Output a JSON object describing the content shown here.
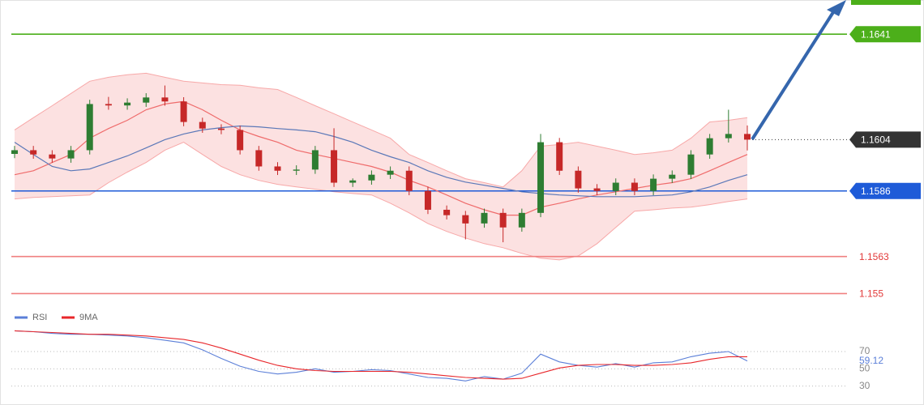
{
  "chart_data": [
    {
      "type": "candlestick",
      "ylim": [
        1.1545,
        1.1653
      ],
      "up_color": "#2e7d32",
      "down_color": "#c62828",
      "open": [
        1.1599,
        1.16003,
        1.15988,
        1.15974,
        1.16003,
        1.16165,
        1.1616,
        1.1617,
        1.16188,
        1.16174,
        1.16102,
        1.16079,
        1.16074,
        1.16003,
        1.15946,
        1.15931,
        1.15935,
        1.16003,
        1.15889,
        1.15897,
        1.15917,
        1.15931,
        1.1586,
        1.15794,
        1.15775,
        1.15746,
        1.15783,
        1.15732,
        1.15783,
        1.16031,
        1.15931,
        1.15869,
        1.1586,
        1.15889,
        1.1586,
        1.15903,
        1.15917,
        1.15988,
        1.16045,
        1.1606
      ],
      "high": [
        1.16018,
        1.16018,
        1.16003,
        1.16018,
        1.1618,
        1.1619,
        1.16185,
        1.16203,
        1.1623,
        1.16189,
        1.16117,
        1.16094,
        1.16089,
        1.16018,
        1.15961,
        1.1595,
        1.16018,
        1.1608,
        1.15904,
        1.15932,
        1.15946,
        1.15946,
        1.15875,
        1.15809,
        1.1579,
        1.15798,
        1.15798,
        1.15798,
        1.1606,
        1.16046,
        1.15946,
        1.15884,
        1.15904,
        1.15904,
        1.15918,
        1.15932,
        1.16003,
        1.1606,
        1.16145,
        1.1609
      ],
      "low": [
        1.15975,
        1.15973,
        1.15959,
        1.15959,
        1.15988,
        1.16145,
        1.16145,
        1.16155,
        1.16159,
        1.16087,
        1.16064,
        1.16059,
        1.15988,
        1.15931,
        1.15916,
        1.15916,
        1.1592,
        1.15874,
        1.15874,
        1.15882,
        1.15902,
        1.15845,
        1.15779,
        1.1576,
        1.1569,
        1.15731,
        1.1568,
        1.15717,
        1.15768,
        1.15916,
        1.15854,
        1.15845,
        1.15845,
        1.15845,
        1.15845,
        1.15888,
        1.15902,
        1.15973,
        1.1603,
        1.16002
      ],
      "close": [
        1.16003,
        1.15988,
        1.15974,
        1.16003,
        1.16165,
        1.1616,
        1.1617,
        1.16188,
        1.16174,
        1.16102,
        1.16079,
        1.16074,
        1.16003,
        1.15946,
        1.15931,
        1.15935,
        1.16003,
        1.15889,
        1.15897,
        1.15917,
        1.15931,
        1.1586,
        1.15794,
        1.15775,
        1.15746,
        1.15783,
        1.15732,
        1.15783,
        1.16031,
        1.15931,
        1.15869,
        1.1586,
        1.15889,
        1.1586,
        1.15903,
        1.15917,
        1.15988,
        1.16045,
        1.1606,
        1.1604
      ],
      "band": {
        "color": "#f7a8a8",
        "upper": [
          1.16074,
          1.16117,
          1.16159,
          1.16202,
          1.16245,
          1.16259,
          1.16268,
          1.16273,
          1.16259,
          1.16245,
          1.16239,
          1.16233,
          1.16231,
          1.16222,
          1.16216,
          1.16188,
          1.16159,
          1.16131,
          1.16102,
          1.16074,
          1.16045,
          1.15988,
          1.1596,
          1.15931,
          1.15903,
          1.15889,
          1.15874,
          1.15931,
          1.16017,
          1.16023,
          1.16031,
          1.16017,
          1.16003,
          1.15988,
          1.15994,
          1.16003,
          1.16045,
          1.16102,
          1.16108,
          1.16117
        ],
        "lower": [
          1.15832,
          1.15837,
          1.1584,
          1.15843,
          1.15846,
          1.15889,
          1.15926,
          1.1596,
          1.16003,
          1.16031,
          1.15988,
          1.15946,
          1.15917,
          1.15897,
          1.15883,
          1.15874,
          1.15866,
          1.15857,
          1.15851,
          1.15846,
          1.15817,
          1.15783,
          1.15746,
          1.15718,
          1.15695,
          1.15675,
          1.15661,
          1.15641,
          1.15624,
          1.15618,
          1.15632,
          1.15675,
          1.15732,
          1.15789,
          1.15794,
          1.158,
          1.15803,
          1.15812,
          1.15823,
          1.15832
        ]
      },
      "overlays": [
        {
          "color": "#ef6b6b",
          "values": [
            1.15917,
            1.15931,
            1.1596,
            1.15988,
            1.16045,
            1.16079,
            1.16108,
            1.16145,
            1.16165,
            1.16174,
            1.16145,
            1.16108,
            1.16074,
            1.16051,
            1.16031,
            1.16003,
            1.15988,
            1.15974,
            1.1596,
            1.15946,
            1.15926,
            1.15897,
            1.15874,
            1.15846,
            1.15817,
            1.15794,
            1.15775,
            1.15775,
            1.15803,
            1.15817,
            1.15832,
            1.15846,
            1.15857,
            1.15869,
            1.1588,
            1.15889,
            1.15903,
            1.15931,
            1.1596,
            1.15988
          ]
        },
        {
          "color": "#5b78b8",
          "values": [
            1.16031,
            1.15988,
            1.15946,
            1.15931,
            1.15937,
            1.1596,
            1.15983,
            1.16011,
            1.1604,
            1.1606,
            1.16074,
            1.16082,
            1.16088,
            1.16085,
            1.16079,
            1.16074,
            1.16068,
            1.16051,
            1.16031,
            1.16003,
            1.1598,
            1.1596,
            1.15931,
            1.15908,
            1.15891,
            1.1588,
            1.15869,
            1.15857,
            1.15851,
            1.15846,
            1.15843,
            1.1584,
            1.1584,
            1.1584,
            1.15843,
            1.15846,
            1.15857,
            1.15874,
            1.15897,
            1.15917
          ]
        }
      ],
      "levels": [
        {
          "value": 1.1641,
          "color": "#4caf1a",
          "style": "solid",
          "label_style": "box"
        },
        {
          "value": 1.1604,
          "color": "#333333",
          "style": "dotted",
          "label_style": "box"
        },
        {
          "value": 1.1586,
          "color": "#1e5bd8",
          "style": "solid",
          "label_style": "box"
        },
        {
          "value": 1.1563,
          "color": "#f08080",
          "style": "solid",
          "label_style": "text"
        },
        {
          "value": 1.155,
          "color": "#f08080",
          "style": "solid",
          "label_style": "text"
        }
      ]
    },
    {
      "type": "line",
      "ylim": [
        10,
        100
      ],
      "yticks": [
        70,
        50,
        30
      ],
      "grid": true,
      "series": [
        {
          "name": "RSI",
          "color": "#5b7fd8",
          "values": [
            94,
            93,
            91,
            90,
            90,
            89,
            88,
            86,
            83,
            80,
            72,
            62,
            53,
            47,
            44,
            46,
            50,
            46,
            47,
            49,
            48,
            44,
            40,
            39,
            36,
            41,
            38,
            45,
            67,
            58,
            54,
            52,
            56,
            52,
            57,
            58,
            64,
            68,
            70,
            59.12
          ]
        },
        {
          "name": "9MA",
          "color": "#e8262a",
          "values": [
            94,
            93,
            92,
            91,
            90,
            90,
            89,
            88,
            86,
            84,
            80,
            74,
            67,
            60,
            54,
            50,
            48,
            47,
            47,
            47,
            47,
            46,
            44,
            42,
            40,
            39,
            38,
            39,
            45,
            51,
            54,
            55,
            55,
            54,
            54,
            55,
            57,
            61,
            64,
            64
          ]
        }
      ]
    }
  ]
}
